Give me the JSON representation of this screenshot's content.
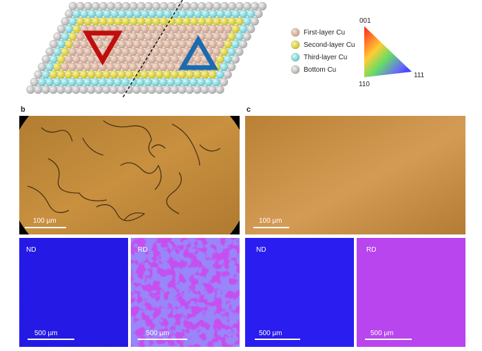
{
  "figure": {
    "legend": [
      "First-layer Cu",
      "Second-layer Cu",
      "Third-layer Cu",
      "Bottom Cu"
    ],
    "orientation_key": {
      "top": "001",
      "right": "111",
      "left": "110"
    },
    "panels": [
      {
        "label": "b",
        "optical_scale": "100 µm",
        "maps": [
          {
            "label": "ND",
            "scale": "500 µm"
          },
          {
            "label": "RD",
            "scale": "500 µm"
          }
        ]
      },
      {
        "label": "c",
        "optical_scale": "100 µm",
        "maps": [
          {
            "label": "ND",
            "scale": "500 µm"
          },
          {
            "label": "RD",
            "scale": "500 µm"
          }
        ]
      }
    ]
  }
}
